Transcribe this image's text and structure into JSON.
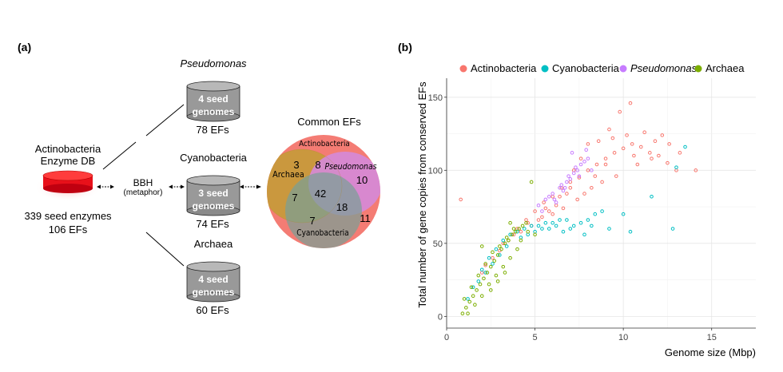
{
  "panel_a": {
    "label": "(a)",
    "source_db": {
      "line1": "Actinobacteria",
      "line2": "Enzyme DB",
      "seed_enzymes": "339 seed enzymes",
      "efs": "106 EFs"
    },
    "bbh": {
      "line1": "BBH",
      "line2": "(metaphor)"
    },
    "genomes": [
      {
        "name": "Pseudomonas",
        "italic": true,
        "seed": "4  seed",
        "label": "genomes",
        "efs": "78 EFs"
      },
      {
        "name": "Cyanobacteria",
        "italic": false,
        "seed": "3 seed",
        "label": "genomes",
        "efs": "74 EFs"
      },
      {
        "name": "Archaea",
        "italic": false,
        "seed": "4 seed",
        "label": "genomes",
        "efs": "60 EFs"
      }
    ],
    "venn": {
      "title": "Common EFs",
      "labels": {
        "actinobacteria": "Actinobacteria",
        "archaea": "Archaea",
        "pseudomonas": "Pseudomonas",
        "cyanobacteria": "Cyanobacteria"
      },
      "counts": {
        "archaea_actino": "3",
        "actino_pseudo": "8",
        "pseudo_actino": "10",
        "archaea_cyano": "7",
        "all": "42",
        "pseudo_cyano": "18",
        "cyano_actino": "7",
        "actino_only": "11"
      },
      "colors": {
        "actinobacteria": "#f47c74",
        "archaea": "#c59a3c",
        "pseudomonas": "#d98be0",
        "cyanobacteria": "#7fa79a"
      }
    }
  },
  "panel_b": {
    "label": "(b)",
    "chart_data": {
      "type": "scatter",
      "xlabel": "Genome size (Mbp)",
      "ylabel": "Total number of gene copies from conserved EFs",
      "xlim": [
        0,
        17.5
      ],
      "ylim": [
        -8,
        163
      ],
      "x_ticks": [
        "0",
        "5",
        "10",
        "15"
      ],
      "y_ticks": [
        "0",
        "50",
        "100",
        "150"
      ],
      "grid": true,
      "legend_position": "top",
      "series": [
        {
          "name": "Actinobacteria",
          "color": "#f8766d",
          "points": [
            [
              0.8,
              80
            ],
            [
              2.2,
              35
            ],
            [
              3.0,
              45
            ],
            [
              3.5,
              52
            ],
            [
              4.0,
              60
            ],
            [
              4.5,
              66
            ],
            [
              5.0,
              72
            ],
            [
              5.5,
              78
            ],
            [
              6.0,
              82
            ],
            [
              6.5,
              88
            ],
            [
              7.0,
              92
            ],
            [
              7.5,
              95
            ],
            [
              8.0,
              100
            ],
            [
              8.5,
              104
            ],
            [
              9.0,
              108
            ],
            [
              9.5,
              112
            ],
            [
              10.0,
              115
            ],
            [
              10.5,
              118
            ],
            [
              11.0,
              116
            ],
            [
              11.5,
              112
            ],
            [
              12.0,
              110
            ],
            [
              12.5,
              105
            ],
            [
              13.0,
              100
            ],
            [
              14.1,
              100
            ],
            [
              10.4,
              146
            ],
            [
              9.8,
              140
            ],
            [
              9.2,
              128
            ],
            [
              8.6,
              120
            ],
            [
              8.0,
              118
            ],
            [
              7.6,
              108
            ],
            [
              7.2,
              100
            ],
            [
              6.8,
              84
            ],
            [
              6.2,
              76
            ],
            [
              5.8,
              72
            ],
            [
              5.2,
              66
            ],
            [
              4.8,
              62
            ],
            [
              4.2,
              58
            ],
            [
              3.8,
              56
            ],
            [
              11.8,
              120
            ],
            [
              12.6,
              118
            ],
            [
              13.2,
              112
            ],
            [
              10.8,
              104
            ],
            [
              9.6,
              96
            ],
            [
              8.8,
              92
            ],
            [
              8.2,
              88
            ],
            [
              7.8,
              84
            ],
            [
              7.4,
              80
            ],
            [
              6.6,
              74
            ],
            [
              6.0,
              70
            ],
            [
              5.4,
              68
            ],
            [
              9.4,
              122
            ],
            [
              10.2,
              124
            ],
            [
              11.2,
              126
            ],
            [
              12.2,
              124
            ],
            [
              9.0,
              104
            ],
            [
              10.6,
              110
            ],
            [
              11.6,
              108
            ],
            [
              8.4,
              96
            ],
            [
              7.0,
              88
            ],
            [
              6.4,
              82
            ],
            [
              5.6,
              74
            ],
            [
              4.6,
              64
            ],
            [
              3.2,
              50
            ],
            [
              2.6,
              40
            ],
            [
              2.0,
              30
            ]
          ]
        },
        {
          "name": "Cyanobacteria",
          "color": "#00bfc4",
          "points": [
            [
              1.5,
              20
            ],
            [
              2.0,
              32
            ],
            [
              2.4,
              40
            ],
            [
              2.8,
              46
            ],
            [
              3.2,
              52
            ],
            [
              3.6,
              56
            ],
            [
              4.0,
              58
            ],
            [
              4.4,
              60
            ],
            [
              4.8,
              62
            ],
            [
              5.2,
              62
            ],
            [
              5.6,
              64
            ],
            [
              6.0,
              64
            ],
            [
              6.4,
              66
            ],
            [
              6.8,
              66
            ],
            [
              7.2,
              62
            ],
            [
              7.6,
              64
            ],
            [
              8.0,
              66
            ],
            [
              8.4,
              70
            ],
            [
              8.8,
              72
            ],
            [
              10.0,
              70
            ],
            [
              10.4,
              58
            ],
            [
              11.6,
              82
            ],
            [
              13.0,
              102
            ],
            [
              13.5,
              116
            ],
            [
              12.8,
              60
            ],
            [
              9.2,
              60
            ],
            [
              7.8,
              56
            ],
            [
              6.6,
              58
            ],
            [
              5.8,
              60
            ],
            [
              5.0,
              58
            ],
            [
              4.2,
              54
            ],
            [
              3.4,
              48
            ],
            [
              2.6,
              36
            ],
            [
              1.8,
              24
            ],
            [
              1.2,
              12
            ],
            [
              3.0,
              42
            ],
            [
              2.2,
              30
            ],
            [
              4.6,
              56
            ],
            [
              5.4,
              60
            ],
            [
              6.2,
              62
            ],
            [
              7.0,
              60
            ],
            [
              8.2,
              62
            ]
          ]
        },
        {
          "name": "Pseudomonas",
          "color": "#c77cff",
          "points": [
            [
              5.2,
              76
            ],
            [
              5.6,
              80
            ],
            [
              6.0,
              84
            ],
            [
              6.4,
              88
            ],
            [
              6.8,
              92
            ],
            [
              7.2,
              98
            ],
            [
              7.6,
              104
            ],
            [
              8.0,
              108
            ],
            [
              6.2,
              78
            ],
            [
              6.6,
              86
            ],
            [
              7.0,
              94
            ],
            [
              7.4,
              100
            ],
            [
              7.8,
              106
            ],
            [
              5.8,
              82
            ],
            [
              6.9,
              96
            ],
            [
              7.3,
              102
            ],
            [
              6.5,
              90
            ],
            [
              7.1,
              112
            ],
            [
              7.9,
              114
            ],
            [
              5.4,
              72
            ],
            [
              6.1,
              80
            ],
            [
              6.7,
              88
            ],
            [
              7.5,
              96
            ],
            [
              8.2,
              100
            ]
          ]
        },
        {
          "name": "Archaea",
          "color": "#7cae00",
          "points": [
            [
              0.9,
              2
            ],
            [
              1.1,
              6
            ],
            [
              1.3,
              10
            ],
            [
              1.5,
              14
            ],
            [
              1.7,
              18
            ],
            [
              1.9,
              22
            ],
            [
              2.1,
              26
            ],
            [
              2.3,
              30
            ],
            [
              2.5,
              34
            ],
            [
              2.7,
              38
            ],
            [
              2.9,
              42
            ],
            [
              3.1,
              46
            ],
            [
              3.3,
              50
            ],
            [
              3.5,
              52
            ],
            [
              3.7,
              56
            ],
            [
              3.9,
              58
            ],
            [
              4.1,
              60
            ],
            [
              4.3,
              62
            ],
            [
              4.5,
              64
            ],
            [
              1.2,
              2
            ],
            [
              1.6,
              8
            ],
            [
              2.0,
              14
            ],
            [
              2.4,
              22
            ],
            [
              2.8,
              28
            ],
            [
              3.2,
              34
            ],
            [
              3.6,
              40
            ],
            [
              4.0,
              46
            ],
            [
              1.4,
              20
            ],
            [
              1.8,
              28
            ],
            [
              2.2,
              36
            ],
            [
              2.6,
              44
            ],
            [
              3.0,
              48
            ],
            [
              3.4,
              54
            ],
            [
              3.8,
              60
            ],
            [
              4.2,
              52
            ],
            [
              4.6,
              58
            ],
            [
              5.0,
              56
            ],
            [
              4.8,
              92
            ],
            [
              2.0,
              48
            ],
            [
              3.6,
              64
            ],
            [
              1.0,
              12
            ],
            [
              2.9,
              24
            ],
            [
              3.3,
              30
            ],
            [
              2.5,
              18
            ]
          ]
        }
      ]
    }
  }
}
